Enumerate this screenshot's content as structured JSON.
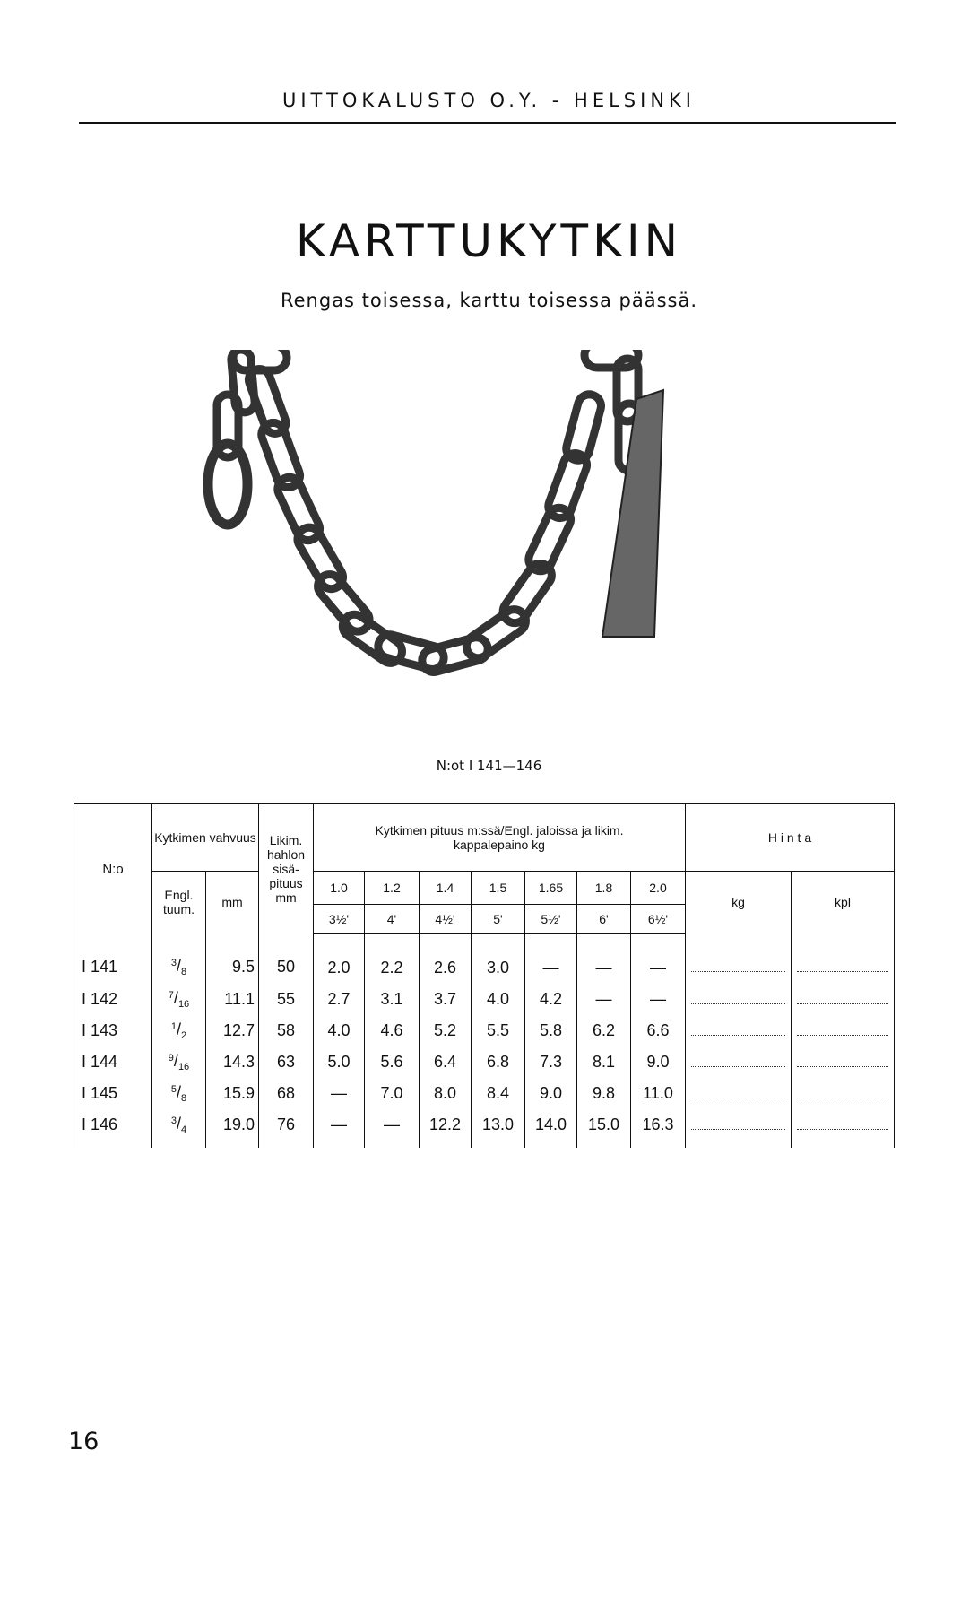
{
  "header": {
    "company": "UITTOKALUSTO O.Y. - HELSINKI"
  },
  "title": "KARTTUKYTKIN",
  "subtitle": "Rengas toisessa, karttu toisessa päässä.",
  "figure_caption": "N:ot I 141—146",
  "table": {
    "col_no": "N:o",
    "col_strength": "Kytkimen vahvuus",
    "col_strength_in": "Engl. tuum.",
    "col_strength_mm": "mm",
    "col_link": "Likim. hahlon sisä- pituus mm",
    "col_length": "Kytkimen pituus m:ssä/Engl. jaloissa ja likim. kappalepaino kg",
    "lengths_m": [
      "1.0",
      "1.2",
      "1.4",
      "1.5",
      "1.65",
      "1.8",
      "2.0"
    ],
    "lengths_ft": [
      "3½'",
      "4'",
      "4½'",
      "5'",
      "5½'",
      "6'",
      "6½'"
    ],
    "col_price": "H i n t a",
    "col_price_kg": "kg",
    "col_price_kpl": "kpl",
    "rows": [
      {
        "no": "I 141",
        "in_num": "3",
        "in_den": "8",
        "mm": "9.5",
        "link": "50",
        "w": [
          "2.0",
          "2.2",
          "2.6",
          "3.0",
          "—",
          "—",
          "—"
        ]
      },
      {
        "no": "I 142",
        "in_num": "7",
        "in_den": "16",
        "mm": "11.1",
        "link": "55",
        "w": [
          "2.7",
          "3.1",
          "3.7",
          "4.0",
          "4.2",
          "—",
          "—"
        ]
      },
      {
        "no": "I 143",
        "in_num": "1",
        "in_den": "2",
        "mm": "12.7",
        "link": "58",
        "w": [
          "4.0",
          "4.6",
          "5.2",
          "5.5",
          "5.8",
          "6.2",
          "6.6"
        ]
      },
      {
        "no": "I 144",
        "in_num": "9",
        "in_den": "16",
        "mm": "14.3",
        "link": "63",
        "w": [
          "5.0",
          "5.6",
          "6.4",
          "6.8",
          "7.3",
          "8.1",
          "9.0"
        ]
      },
      {
        "no": "I 145",
        "in_num": "5",
        "in_den": "8",
        "mm": "15.9",
        "link": "68",
        "w": [
          "—",
          "7.0",
          "8.0",
          "8.4",
          "9.0",
          "9.8",
          "11.0"
        ]
      },
      {
        "no": "I 146",
        "in_num": "3",
        "in_den": "4",
        "mm": "19.0",
        "link": "76",
        "w": [
          "—",
          "—",
          "12.2",
          "13.0",
          "14.0",
          "15.0",
          "16.3"
        ]
      }
    ]
  },
  "page_number": "16"
}
